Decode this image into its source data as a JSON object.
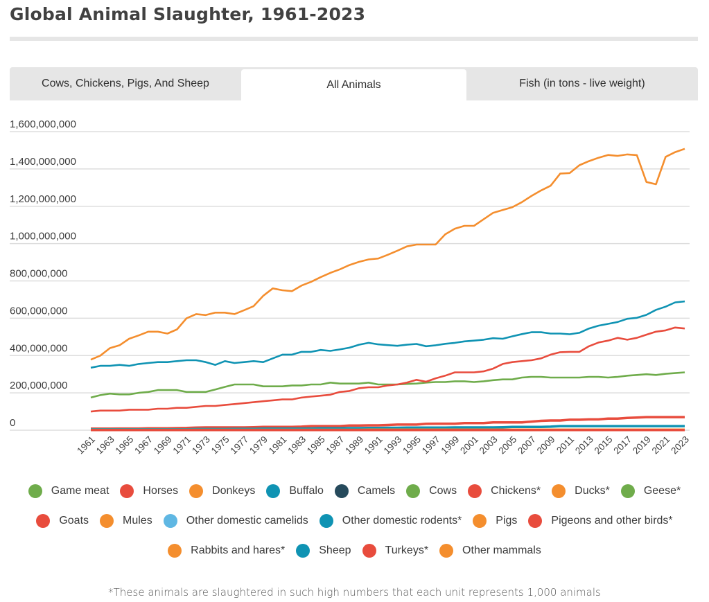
{
  "title": "Global Animal Slaughter, 1961-2023",
  "tabs": [
    {
      "label": "Cows, Chickens, Pigs, And Sheep",
      "active": false
    },
    {
      "label": "All Animals",
      "active": true
    },
    {
      "label": "Fish (in tons - live weight)",
      "active": false
    }
  ],
  "footnote": "*These animals are slaughtered in such high numbers that each unit represents 1,000 animals",
  "legend_rows": [
    [
      {
        "label": "Game meat",
        "color": "#6fac4b"
      },
      {
        "label": "Horses",
        "color": "#e84c3d"
      },
      {
        "label": "Donkeys",
        "color": "#f48e2e"
      },
      {
        "label": "Buffalo",
        "color": "#0f93b3"
      },
      {
        "label": "Camels",
        "color": "#264a5c"
      },
      {
        "label": "Cows",
        "color": "#6fac4b"
      },
      {
        "label": "Chickens*",
        "color": "#e84c3d"
      },
      {
        "label": "Ducks*",
        "color": "#f48e2e"
      },
      {
        "label": "Geese*",
        "color": "#6fac4b"
      }
    ],
    [
      {
        "label": "Goats",
        "color": "#e84c3d"
      },
      {
        "label": "Mules",
        "color": "#f48e2e"
      },
      {
        "label": "Other domestic camelids",
        "color": "#5fb7e3"
      },
      {
        "label": "Other domestic rodents*",
        "color": "#0f93b3"
      },
      {
        "label": "Pigs",
        "color": "#f48e2e"
      },
      {
        "label": "Pigeons and other birds*",
        "color": "#e84c3d"
      }
    ],
    [
      {
        "label": "Rabbits and hares*",
        "color": "#f48e2e"
      },
      {
        "label": "Sheep",
        "color": "#0f93b3"
      },
      {
        "label": "Turkeys*",
        "color": "#e84c3d"
      },
      {
        "label": "Other mammals",
        "color": "#f48e2e"
      }
    ]
  ],
  "chart_data": {
    "type": "line",
    "title": "Global Animal Slaughter, 1961-2023",
    "xlabel": "",
    "ylabel": "",
    "ylim": [
      0,
      1600000000
    ],
    "yticks": [
      0,
      200000000,
      400000000,
      600000000,
      800000000,
      1000000000,
      1200000000,
      1400000000,
      1600000000
    ],
    "ytick_labels": [
      "0",
      "200,000,000",
      "400,000,000",
      "600,000,000",
      "800,000,000",
      "1,000,000,000",
      "1,200,000,000",
      "1,400,000,000",
      "1,600,000,000"
    ],
    "x": [
      1961,
      1962,
      1963,
      1964,
      1965,
      1966,
      1967,
      1968,
      1969,
      1970,
      1971,
      1972,
      1973,
      1974,
      1975,
      1976,
      1977,
      1978,
      1979,
      1980,
      1981,
      1982,
      1983,
      1984,
      1985,
      1986,
      1987,
      1988,
      1989,
      1990,
      1991,
      1992,
      1993,
      1994,
      1995,
      1996,
      1997,
      1998,
      1999,
      2000,
      2001,
      2002,
      2003,
      2004,
      2005,
      2006,
      2007,
      2008,
      2009,
      2010,
      2011,
      2012,
      2013,
      2014,
      2015,
      2016,
      2017,
      2018,
      2019,
      2020,
      2021,
      2022,
      2023
    ],
    "xtick_labels": [
      "1961",
      "1963",
      "1965",
      "1967",
      "1969",
      "1971",
      "1973",
      "1975",
      "1977",
      "1979",
      "1981",
      "1983",
      "1985",
      "1987",
      "1989",
      "1991",
      "1993",
      "1995",
      "1997",
      "1999",
      "2001",
      "2003",
      "2005",
      "2007",
      "2009",
      "2011",
      "2013",
      "2015",
      "2017",
      "2019",
      "2021",
      "2023"
    ],
    "grid": true,
    "legend_position": "bottom",
    "units_note": "values in millions",
    "series": [
      {
        "name": "Chickens*",
        "color": "#f48e2e",
        "values": [
          378,
          400,
          440,
          455,
          490,
          508,
          528,
          528,
          518,
          540,
          600,
          622,
          617,
          630,
          630,
          622,
          643,
          665,
          720,
          760,
          750,
          745,
          775,
          795,
          820,
          843,
          862,
          885,
          902,
          915,
          920,
          940,
          962,
          985,
          995,
          995,
          995,
          1050,
          1080,
          1095,
          1095,
          1130,
          1165,
          1180,
          1195,
          1222,
          1255,
          1285,
          1310,
          1375,
          1378,
          1420,
          1442,
          1460,
          1475,
          1470,
          1478,
          1474,
          1330,
          1318,
          1465,
          1490,
          1508
        ]
      },
      {
        "name": "Pigs",
        "color": "#0f93b3",
        "values": [
          335,
          345,
          345,
          350,
          345,
          355,
          360,
          365,
          365,
          370,
          375,
          375,
          365,
          350,
          370,
          360,
          365,
          370,
          365,
          385,
          405,
          405,
          420,
          420,
          430,
          425,
          433,
          442,
          458,
          468,
          460,
          456,
          452,
          458,
          462,
          450,
          455,
          463,
          468,
          476,
          480,
          485,
          493,
          490,
          503,
          515,
          525,
          525,
          518,
          518,
          514,
          522,
          545,
          560,
          570,
          580,
          597,
          602,
          618,
          645,
          662,
          685,
          690
        ]
      },
      {
        "name": "Ducks*",
        "color": "#6fac4b",
        "values": [
          175,
          188,
          196,
          192,
          192,
          200,
          205,
          215,
          215,
          215,
          205,
          205,
          205,
          218,
          232,
          245,
          245,
          245,
          235,
          235,
          235,
          240,
          240,
          245,
          245,
          255,
          250,
          250,
          250,
          255,
          245,
          245,
          245,
          248,
          250,
          255,
          258,
          258,
          262,
          262,
          258,
          262,
          268,
          272,
          272,
          282,
          286,
          286,
          282,
          282,
          282,
          282,
          286,
          286,
          282,
          286,
          292,
          296,
          300,
          296,
          302,
          306,
          310
        ]
      },
      {
        "name": "Goats",
        "color": "#e84c3d",
        "values": [
          100,
          105,
          105,
          105,
          110,
          110,
          110,
          115,
          115,
          120,
          120,
          125,
          130,
          130,
          135,
          140,
          145,
          150,
          155,
          160,
          165,
          165,
          175,
          180,
          185,
          190,
          205,
          210,
          225,
          230,
          230,
          240,
          245,
          255,
          270,
          260,
          278,
          292,
          310,
          310,
          310,
          315,
          330,
          355,
          365,
          370,
          375,
          385,
          405,
          418,
          420,
          420,
          450,
          470,
          480,
          495,
          485,
          495,
          512,
          528,
          535,
          550,
          545
        ]
      },
      {
        "name": "Turkeys*",
        "color": "#e84c3d",
        "values": [
          8,
          8,
          8,
          9,
          9,
          9,
          10,
          10,
          10,
          11,
          12,
          14,
          15,
          15,
          15,
          15,
          15,
          16,
          18,
          18,
          18,
          18,
          19,
          22,
          22,
          22,
          22,
          25,
          25,
          26,
          26,
          28,
          30,
          30,
          30,
          34,
          35,
          35,
          35,
          38,
          38,
          38,
          42,
          42,
          42,
          42,
          46,
          50,
          52,
          52,
          56,
          56,
          58,
          58,
          62,
          62,
          66,
          68,
          70,
          70,
          70,
          70,
          70
        ]
      },
      {
        "name": "Sheep",
        "color": "#0f93b3",
        "values": [
          5,
          5,
          5,
          5,
          5,
          5,
          5,
          5,
          5,
          5,
          5,
          6,
          6,
          6,
          6,
          7,
          7,
          7,
          8,
          8,
          8,
          8,
          8,
          9,
          10,
          10,
          10,
          11,
          11,
          12,
          12,
          13,
          13,
          14,
          14,
          14,
          14,
          14,
          15,
          15,
          15,
          15,
          15,
          16,
          18,
          18,
          18,
          18,
          19,
          22,
          22,
          22,
          22,
          22,
          22,
          22,
          22,
          22,
          22,
          22,
          22,
          22,
          22
        ]
      },
      {
        "name": "Rabbits and hares*",
        "color": "#f48e2e",
        "values": [
          2,
          2,
          2,
          2,
          2,
          2,
          2,
          2,
          2,
          2,
          2,
          2,
          2,
          2,
          2,
          2,
          2,
          2,
          2,
          2,
          2,
          2,
          2,
          2,
          2,
          2,
          2,
          2,
          2,
          3,
          3,
          3,
          3,
          3,
          3,
          3,
          3,
          3,
          3,
          3,
          3,
          3,
          3,
          3,
          3,
          3,
          3,
          3,
          3,
          3,
          3,
          3,
          3,
          3,
          3,
          3,
          3,
          3,
          3,
          3,
          3,
          3,
          3
        ]
      },
      {
        "name": "Pigeons and other birds*",
        "color": "#e84c3d",
        "values": [
          1,
          1,
          1,
          1,
          1,
          1,
          1,
          1,
          1,
          1,
          1,
          1,
          1,
          1,
          1,
          1,
          1,
          1,
          1,
          1,
          1,
          1,
          1,
          1,
          1,
          1,
          1,
          1,
          1,
          1,
          1,
          1,
          1,
          1,
          1,
          1,
          1,
          1,
          1,
          1,
          1,
          1,
          1,
          1,
          1,
          1,
          1,
          1,
          1,
          1,
          1,
          1,
          1,
          1,
          1,
          1,
          1,
          1,
          1,
          1,
          1,
          1,
          1
        ]
      }
    ]
  }
}
